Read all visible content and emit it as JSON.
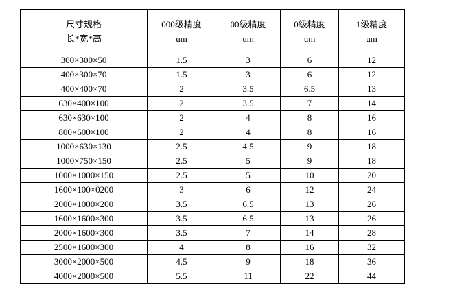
{
  "table": {
    "headers": [
      {
        "line1": "尺寸规格",
        "line2": "长*宽*高"
      },
      {
        "line1": "000级精度",
        "line2": "um"
      },
      {
        "line1": "00级精度",
        "line2": "um"
      },
      {
        "line1": "0级精度",
        "line2": "um"
      },
      {
        "line1": "1级精度",
        "line2": "um"
      }
    ],
    "rows": [
      [
        "300×300×50",
        "1.5",
        "3",
        "6",
        "12"
      ],
      [
        "400×300×70",
        "1.5",
        "3",
        "6",
        "12"
      ],
      [
        "400×400×70",
        "2",
        "3.5",
        "6.5",
        "13"
      ],
      [
        "630×400×100",
        "2",
        "3.5",
        "7",
        "14"
      ],
      [
        "630×630×100",
        "2",
        "4",
        "8",
        "16"
      ],
      [
        "800×600×100",
        "2",
        "4",
        "8",
        "16"
      ],
      [
        "1000×630×130",
        "2.5",
        "4.5",
        "9",
        "18"
      ],
      [
        "1000×750×150",
        "2.5",
        "5",
        "9",
        "18"
      ],
      [
        "1000×1000×150",
        "2.5",
        "5",
        "10",
        "20"
      ],
      [
        "1600×100×0200",
        "3",
        "6",
        "12",
        "24"
      ],
      [
        "2000×1000×200",
        "3.5",
        "6.5",
        "13",
        "26"
      ],
      [
        "1600×1600×300",
        "3.5",
        "6.5",
        "13",
        "26"
      ],
      [
        "2000×1600×300",
        "3.5",
        "7",
        "14",
        "28"
      ],
      [
        "2500×1600×300",
        "4",
        "8",
        "16",
        "32"
      ],
      [
        "3000×2000×500",
        "4.5",
        "9",
        "18",
        "36"
      ],
      [
        "4000×2000×500",
        "5.5",
        "11",
        "22",
        "44"
      ]
    ]
  }
}
